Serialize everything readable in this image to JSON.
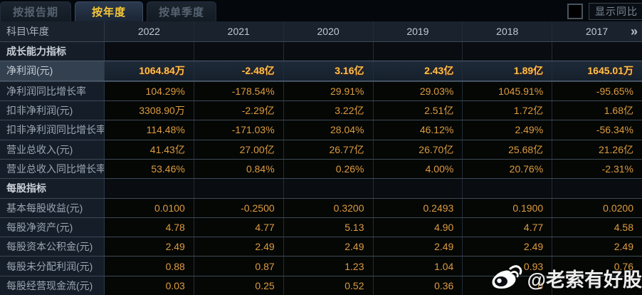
{
  "tabs": [
    {
      "label": "按报告期",
      "active": false
    },
    {
      "label": "按年度",
      "active": true
    },
    {
      "label": "按单季度",
      "active": false
    }
  ],
  "controls": {
    "show_yoy_label": "显示同比",
    "checkbox_checked": false
  },
  "table": {
    "corner_label": "科目\\年度",
    "years": [
      "2022",
      "2021",
      "2020",
      "2019",
      "2018",
      "2017"
    ],
    "more_icon": "»",
    "rows": [
      {
        "type": "section",
        "label": "成长能力指标",
        "values": [
          "",
          "",
          "",
          "",
          "",
          ""
        ]
      },
      {
        "type": "highlight",
        "label": "净利润(元)",
        "values": [
          "1064.84万",
          "-2.48亿",
          "3.16亿",
          "2.43亿",
          "1.89亿",
          "1645.01万"
        ]
      },
      {
        "type": "data",
        "label": "净利润同比增长率",
        "values": [
          "104.29%",
          "-178.54%",
          "29.91%",
          "29.03%",
          "1045.91%",
          "-95.65%"
        ]
      },
      {
        "type": "data",
        "label": "扣非净利润(元)",
        "values": [
          "3308.90万",
          "-2.29亿",
          "3.22亿",
          "2.51亿",
          "1.72亿",
          "1.68亿"
        ]
      },
      {
        "type": "data",
        "label": "扣非净利润同比增长率",
        "values": [
          "114.48%",
          "-171.03%",
          "28.04%",
          "46.12%",
          "2.49%",
          "-56.34%"
        ]
      },
      {
        "type": "data",
        "label": "营业总收入(元)",
        "values": [
          "41.43亿",
          "27.00亿",
          "26.77亿",
          "26.70亿",
          "25.68亿",
          "21.26亿"
        ]
      },
      {
        "type": "data",
        "label": "营业总收入同比增长率",
        "values": [
          "53.46%",
          "0.84%",
          "0.26%",
          "4.00%",
          "20.76%",
          "-2.31%"
        ]
      },
      {
        "type": "section",
        "label": "每股指标",
        "values": [
          "",
          "",
          "",
          "",
          "",
          ""
        ]
      },
      {
        "type": "data",
        "label": "基本每股收益(元)",
        "values": [
          "0.0100",
          "-0.2500",
          "0.3200",
          "0.2493",
          "0.1900",
          "0.0200"
        ]
      },
      {
        "type": "data",
        "label": "每股净资产(元)",
        "values": [
          "4.78",
          "4.77",
          "5.13",
          "4.90",
          "4.77",
          "4.58"
        ]
      },
      {
        "type": "data",
        "label": "每股资本公积金(元)",
        "values": [
          "2.49",
          "2.49",
          "2.49",
          "2.49",
          "2.49",
          "2.49"
        ]
      },
      {
        "type": "data",
        "label": "每股未分配利润(元)",
        "values": [
          "0.88",
          "0.87",
          "1.23",
          "1.04",
          "0.93",
          "0.76"
        ]
      },
      {
        "type": "data",
        "label": "每股经营现金流(元)",
        "values": [
          "0.03",
          "0.25",
          "0.52",
          "0.36",
          "0",
          ""
        ]
      }
    ]
  },
  "watermark": {
    "text": "@老索有好股"
  },
  "colors": {
    "background": "#05080c",
    "label_column_bg": "#151d28",
    "header_bg": "#19222d",
    "highlight_row_label_bg": "#33404f",
    "value_orange": "#dd9b3f",
    "highlight_gold": "#ffc24a",
    "active_tab_gold": "#f8c838",
    "row_border": "#3d4956"
  }
}
